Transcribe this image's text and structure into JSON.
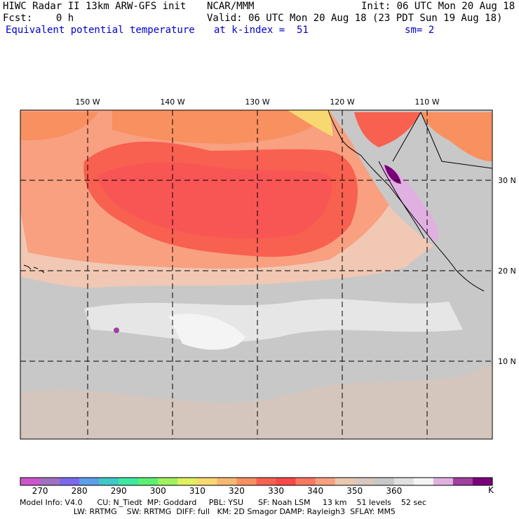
{
  "header": {
    "model_line": "HIWC Radar II 13km ARW-GFS init",
    "org": "NCAR/MMM",
    "init": "Init: 06 UTC Mon 20 Aug 18",
    "fcst": "Fcst:    0 h",
    "valid": "Valid: 06 UTC Mon 20 Aug 18 (23 PDT Sun 19 Aug 18)",
    "field": "Equivalent potential temperature",
    "level": "at k-index =  51",
    "smooth": "sm= 2"
  },
  "map": {
    "lon_labels": [
      "150 W",
      "140 W",
      "130 W",
      "120 W",
      "110 W"
    ],
    "lat_labels": [
      "30 N",
      "20 N",
      "10 N"
    ],
    "lon_values": [
      -150,
      -140,
      -130,
      -120,
      -110
    ],
    "lat_values": [
      30,
      20,
      10
    ]
  },
  "colorbar": {
    "unit": "K",
    "labels": [
      "270",
      "280",
      "290",
      "300",
      "310",
      "320",
      "330",
      "340",
      "350",
      "360"
    ],
    "colors": [
      "#cc55cc",
      "#a070c0",
      "#7b68ee",
      "#5c9ee8",
      "#3ec8c8",
      "#3ee8a0",
      "#5cf070",
      "#a0f060",
      "#e0f060",
      "#f8d870",
      "#f8b870",
      "#f89060",
      "#f86050",
      "#f84848",
      "#f87860",
      "#f8a080",
      "#e8c8b0",
      "#d8c8c0",
      "#c8c8c8",
      "#e0e0e0",
      "#f4f4f4",
      "#e0b0e0",
      "#a040a0",
      "#7a007a"
    ]
  },
  "footer": {
    "line1": "Model Info: V4.0      CU: N_Tiedt  MP: Goddard     PBL: YSU      SF: Noah LSM     13 km    51 levels    52 sec",
    "line2": "                      LW: RRTMG    SW: RRTMG  DIFF: full   KM: 2D Smagor DAMP: Rayleigh3  SFLAY: MM5"
  }
}
